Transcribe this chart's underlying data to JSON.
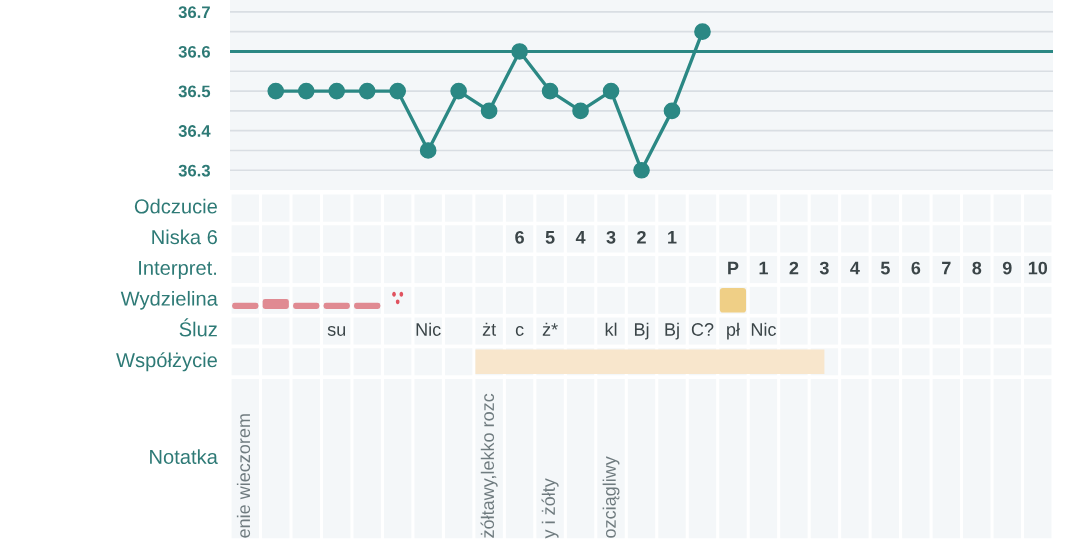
{
  "chart_data": [
    {
      "type": "line",
      "categories": [
        null,
        null,
        null,
        null,
        null,
        null,
        null,
        null,
        null,
        null,
        null,
        null,
        null,
        null,
        null,
        null,
        null,
        null,
        null,
        null,
        null,
        null,
        null,
        null,
        null,
        null,
        null
      ],
      "series": [
        {
          "color": "#2b8884",
          "values": [
            null,
            36.5,
            36.5,
            36.5,
            36.5,
            36.5,
            36.35,
            36.5,
            36.45,
            36.6,
            36.5,
            36.45,
            36.5,
            36.3,
            36.45,
            36.65,
            null,
            null,
            null,
            null,
            null,
            null,
            null,
            null,
            null,
            null,
            null
          ]
        }
      ],
      "ylim": [
        36.25,
        36.73
      ],
      "yticks": [
        36.3,
        {
          "value": 36.35,
          "label": null
        },
        36.4,
        {
          "value": 36.45,
          "label": null
        },
        36.5,
        {
          "value": 36.55,
          "label": null
        },
        36.6,
        {
          "value": 36.65,
          "label": null
        },
        36.7
      ],
      "grid": "y",
      "marker": "circle",
      "tick_labels": "y",
      "ref_lines": [
        {
          "axis": "y",
          "value": 36.6,
          "color": "#2b8884"
        }
      ]
    },
    {
      "type": "heatmap",
      "categories": [
        null,
        null,
        null,
        null,
        null,
        null,
        null,
        null,
        null,
        null,
        null,
        null,
        null,
        null,
        null,
        null,
        null,
        null,
        null,
        null,
        null,
        null,
        null,
        null,
        null,
        null,
        null
      ],
      "y_categories": [
        "Odczucie",
        "Niska 6",
        "Interpret.",
        "Wydzielina",
        "Śluz",
        "Współżycie",
        "Notatka"
      ],
      "cells": [
        [
          null,
          null,
          null,
          null,
          null,
          null,
          null,
          null,
          null,
          null,
          null,
          null,
          null,
          null,
          null,
          null,
          null,
          null,
          null,
          null,
          null,
          null,
          null,
          null,
          null,
          null,
          null
        ],
        [
          null,
          null,
          null,
          null,
          null,
          null,
          null,
          null,
          null,
          null,
          null,
          null,
          null,
          null,
          null,
          null,
          null,
          null,
          null,
          null,
          null,
          null,
          null,
          null,
          null,
          null,
          null
        ],
        [
          null,
          null,
          null,
          null,
          null,
          null,
          null,
          null,
          null,
          null,
          null,
          null,
          null,
          null,
          null,
          null,
          null,
          null,
          null,
          null,
          null,
          null,
          null,
          null,
          null,
          null,
          null
        ],
        [
          null,
          null,
          null,
          null,
          null,
          null,
          null,
          null,
          null,
          null,
          null,
          null,
          null,
          null,
          null,
          null,
          null,
          null,
          null,
          null,
          null,
          null,
          null,
          null,
          null,
          null,
          null
        ],
        [
          null,
          null,
          null,
          null,
          null,
          null,
          null,
          null,
          null,
          null,
          null,
          null,
          null,
          null,
          null,
          null,
          null,
          null,
          null,
          null,
          null,
          null,
          null,
          null,
          null,
          null,
          null
        ],
        [
          null,
          null,
          null,
          null,
          null,
          null,
          null,
          null,
          null,
          null,
          null,
          null,
          null,
          null,
          null,
          null,
          null,
          null,
          null,
          null,
          null,
          null,
          null,
          null,
          null,
          null,
          null
        ],
        [
          null,
          null,
          null,
          null,
          null,
          null,
          null,
          null,
          null,
          null,
          null,
          null,
          null,
          null,
          null,
          null,
          null,
          null,
          null,
          null,
          null,
          null,
          null,
          null,
          null,
          null,
          null
        ]
      ],
      "cell_labels": [
        [
          null,
          null,
          null,
          null,
          null,
          null,
          null,
          null,
          null,
          null,
          null,
          null,
          null,
          null,
          null,
          null,
          null,
          null,
          null,
          null,
          null,
          null,
          null,
          null,
          null,
          null,
          null
        ],
        [
          null,
          null,
          null,
          null,
          null,
          null,
          null,
          null,
          null,
          "6",
          "5",
          "4",
          "3",
          "2",
          "1",
          null,
          null,
          null,
          null,
          null,
          null,
          null,
          null,
          null,
          null,
          null,
          null
        ],
        [
          null,
          null,
          null,
          null,
          null,
          null,
          null,
          null,
          null,
          null,
          null,
          null,
          null,
          null,
          null,
          null,
          "P",
          "1",
          "2",
          "3",
          "4",
          "5",
          "6",
          "7",
          "8",
          "9",
          "10"
        ],
        [
          null,
          null,
          null,
          null,
          null,
          null,
          null,
          null,
          null,
          null,
          null,
          null,
          null,
          null,
          null,
          null,
          null,
          null,
          null,
          null,
          null,
          null,
          null,
          null,
          null,
          null,
          null
        ],
        [
          null,
          null,
          null,
          "su",
          null,
          null,
          "Nic",
          null,
          "żt",
          "c",
          "ż*",
          null,
          "kl",
          "Bj",
          "Bj",
          "C?",
          "pł",
          "Nic",
          null,
          null,
          null,
          null,
          null,
          null,
          null,
          null,
          null
        ],
        [
          null,
          null,
          null,
          null,
          null,
          null,
          null,
          null,
          null,
          null,
          null,
          null,
          null,
          null,
          null,
          null,
          null,
          null,
          null,
          null,
          null,
          null,
          null,
          null,
          null,
          null,
          null
        ],
        [
          "enie wieczorem",
          null,
          null,
          null,
          null,
          null,
          null,
          null,
          "żółtawy,lekko rozc",
          null,
          "y i żółty",
          null,
          "ozciągliwy",
          null,
          null,
          null,
          null,
          null,
          null,
          null,
          null,
          null,
          null,
          null,
          null,
          null,
          null
        ]
      ]
    }
  ]
}
